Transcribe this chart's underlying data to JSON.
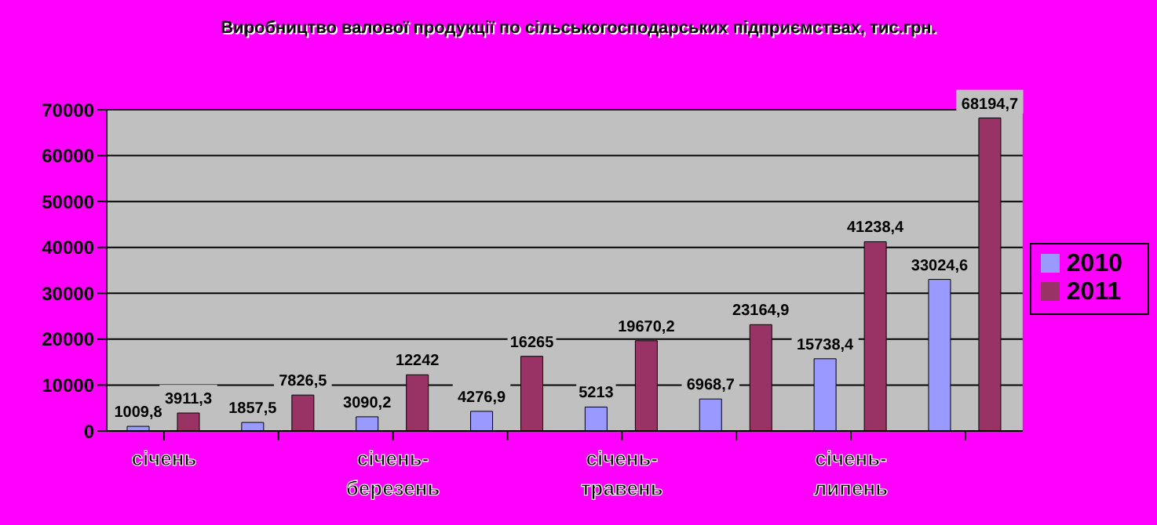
{
  "chart_data": {
    "type": "bar",
    "title": "Виробництво валової продукції по сільськогосподарських підприємствах, тис.грн.",
    "categories": [
      "січень",
      null,
      "січень-березень",
      null,
      "січень-травень",
      null,
      "січень-липень",
      null
    ],
    "series": [
      {
        "name": "2010",
        "color": "#9999ff",
        "values": [
          1009.8,
          1857.5,
          3090.2,
          4276.9,
          5213,
          6968.7,
          15738.4,
          33024.6
        ],
        "value_labels": [
          "1009,8",
          "1857,5",
          "3090,2",
          "4276,9",
          "5213",
          "6968,7",
          "15738,4",
          "33024,6"
        ]
      },
      {
        "name": "2011",
        "color": "#993366",
        "values": [
          3911.3,
          7826.5,
          12242,
          16265,
          19670.2,
          23164.9,
          41238.4,
          68194.7
        ],
        "value_labels": [
          "3911,3",
          "7826,5",
          "12242",
          "16265",
          "19670,2",
          "23164,9",
          "41238,4",
          "68194,7"
        ]
      }
    ],
    "ylim": [
      0,
      70000
    ],
    "yticks": [
      0,
      10000,
      20000,
      30000,
      40000,
      50000,
      60000,
      70000
    ],
    "grid": "y",
    "legend": "right"
  }
}
